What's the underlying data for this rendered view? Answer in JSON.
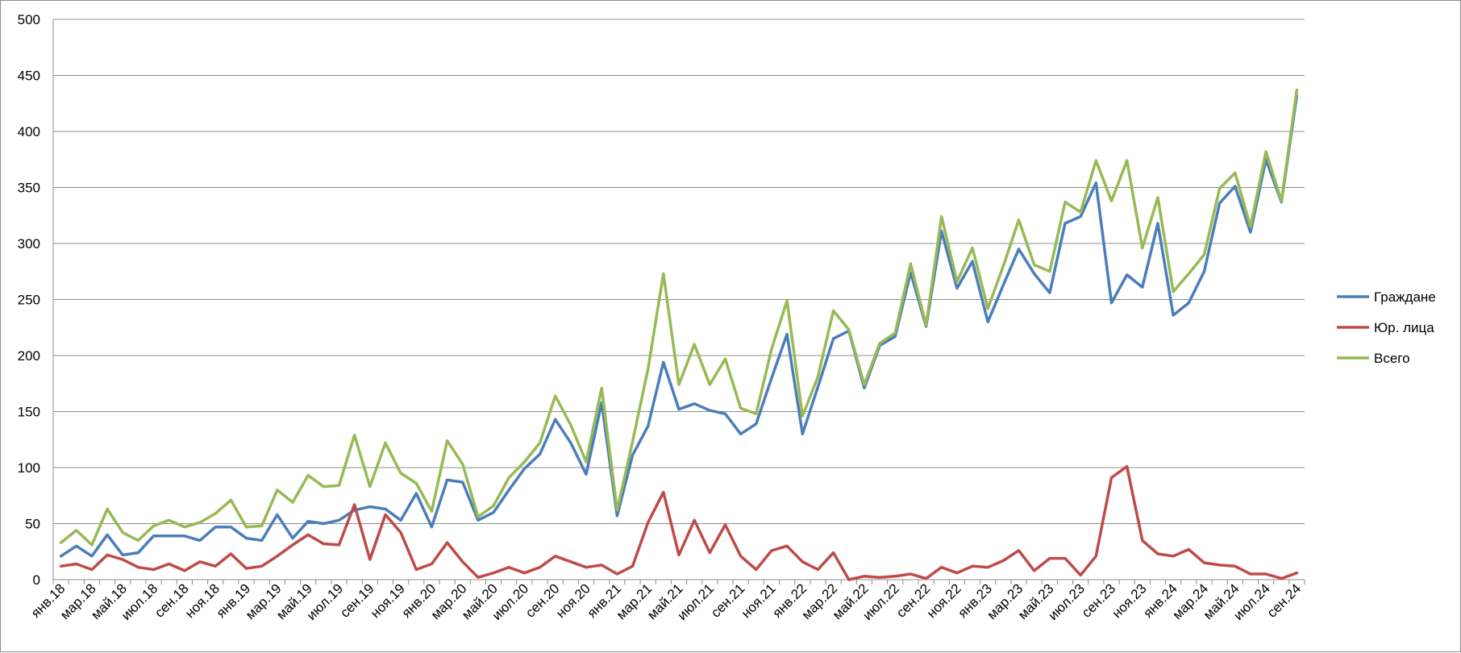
{
  "chart_data": {
    "type": "line",
    "title": "",
    "xlabel": "",
    "ylabel": "",
    "ylim": [
      0,
      500
    ],
    "y_ticks": [
      0,
      50,
      100,
      150,
      200,
      250,
      300,
      350,
      400,
      450,
      500
    ],
    "grid": "horizontal",
    "legend_position": "right",
    "categories": [
      "янв.18",
      "фев.18",
      "мар.18",
      "апр.18",
      "май.18",
      "июн.18",
      "июл.18",
      "авг.18",
      "сен.18",
      "окт.18",
      "ноя.18",
      "дек.18",
      "янв.19",
      "фев.19",
      "мар.19",
      "апр.19",
      "май.19",
      "июн.19",
      "июл.19",
      "авг.19",
      "сен.19",
      "окт.19",
      "ноя.19",
      "дек.19",
      "янв.20",
      "фев.20",
      "мар.20",
      "апр.20",
      "май.20",
      "июн.20",
      "июл.20",
      "авг.20",
      "сен.20",
      "окт.20",
      "ноя.20",
      "дек.20",
      "янв.21",
      "фев.21",
      "мар.21",
      "апр.21",
      "май.21",
      "июн.21",
      "июл.21",
      "авг.21",
      "сен.21",
      "окт.21",
      "ноя.21",
      "дек.21",
      "янв.22",
      "фев.22",
      "мар.22",
      "апр.22",
      "май.22",
      "июн.22",
      "июл.22",
      "авг.22",
      "сен.22",
      "окт.22",
      "ноя.22",
      "дек.22",
      "янв.23",
      "фев.23",
      "мар.23",
      "апр.23",
      "май.23",
      "июн.23",
      "июл.23",
      "авг.23",
      "сен.23",
      "окт.23",
      "ноя.23",
      "дек.23",
      "янв.24",
      "фев.24",
      "мар.24",
      "апр.24",
      "май.24",
      "июн.24",
      "июл.24",
      "авг.24",
      "сен.24"
    ],
    "visible_tick_labels": [
      "янв.18",
      "мар.18",
      "май.18",
      "июл.18",
      "сен.18",
      "ноя.18",
      "янв.19",
      "мар.19",
      "май.19",
      "июл.19",
      "сен.19",
      "ноя.19",
      "янв.20",
      "мар.20",
      "май.20",
      "июл.20",
      "сен.20",
      "ноя.20",
      "янв.21",
      "мар.21",
      "май.21",
      "июл.21",
      "сен.21",
      "ноя.21",
      "янв.22",
      "мар.22",
      "май.22",
      "июл.22",
      "сен.22",
      "ноя.22",
      "янв.23",
      "мар.23",
      "май.23",
      "июл.23",
      "сен.23",
      "ноя.23",
      "янв.24",
      "мар.24",
      "май.24",
      "июл.24",
      "сен.24"
    ],
    "series": [
      {
        "name": "Граждане",
        "color": "#4a7ebb",
        "values": [
          21,
          30,
          21,
          40,
          22,
          24,
          39,
          39,
          39,
          35,
          47,
          47,
          37,
          35,
          58,
          37,
          52,
          50,
          53,
          62,
          65,
          63,
          53,
          77,
          47,
          89,
          87,
          53,
          60,
          80,
          99,
          112,
          143,
          122,
          94,
          158,
          57,
          111,
          137,
          194,
          152,
          157,
          151,
          148,
          130,
          139,
          180,
          219,
          130,
          172,
          215,
          222,
          171,
          209,
          217,
          274,
          226,
          311,
          260,
          284,
          230,
          263,
          295,
          273,
          256,
          318,
          324,
          354,
          247,
          272,
          261,
          318,
          236,
          247,
          275,
          336,
          351,
          310,
          375,
          337,
          432
        ]
      },
      {
        "name": "Юр. лица",
        "color": "#be4b48",
        "values": [
          12,
          14,
          9,
          22,
          18,
          11,
          9,
          14,
          8,
          16,
          12,
          23,
          10,
          12,
          21,
          31,
          40,
          32,
          31,
          67,
          18,
          58,
          42,
          9,
          14,
          33,
          16,
          2,
          6,
          11,
          6,
          11,
          21,
          16,
          11,
          13,
          5,
          12,
          51,
          78,
          22,
          53,
          24,
          49,
          21,
          9,
          26,
          30,
          16,
          9,
          24,
          0,
          3,
          2,
          3,
          5,
          1,
          11,
          6,
          12,
          11,
          17,
          26,
          8,
          19,
          19,
          4,
          21,
          91,
          101,
          35,
          23,
          21,
          27,
          15,
          13,
          12,
          5,
          5,
          1,
          6
        ]
      },
      {
        "name": "Всего",
        "color": "#98b954",
        "values": [
          33,
          44,
          31,
          63,
          42,
          35,
          48,
          53,
          47,
          51,
          59,
          71,
          47,
          48,
          80,
          69,
          93,
          83,
          84,
          129,
          83,
          122,
          95,
          86,
          61,
          124,
          103,
          56,
          66,
          91,
          105,
          122,
          164,
          138,
          105,
          171,
          62,
          123,
          188,
          273,
          174,
          210,
          174,
          197,
          153,
          148,
          206,
          249,
          146,
          181,
          240,
          223,
          174,
          211,
          220,
          282,
          227,
          324,
          266,
          296,
          242,
          280,
          321,
          281,
          275,
          337,
          328,
          374,
          338,
          374,
          296,
          341,
          257,
          273,
          290,
          349,
          363,
          315,
          382,
          338,
          437
        ]
      }
    ]
  }
}
